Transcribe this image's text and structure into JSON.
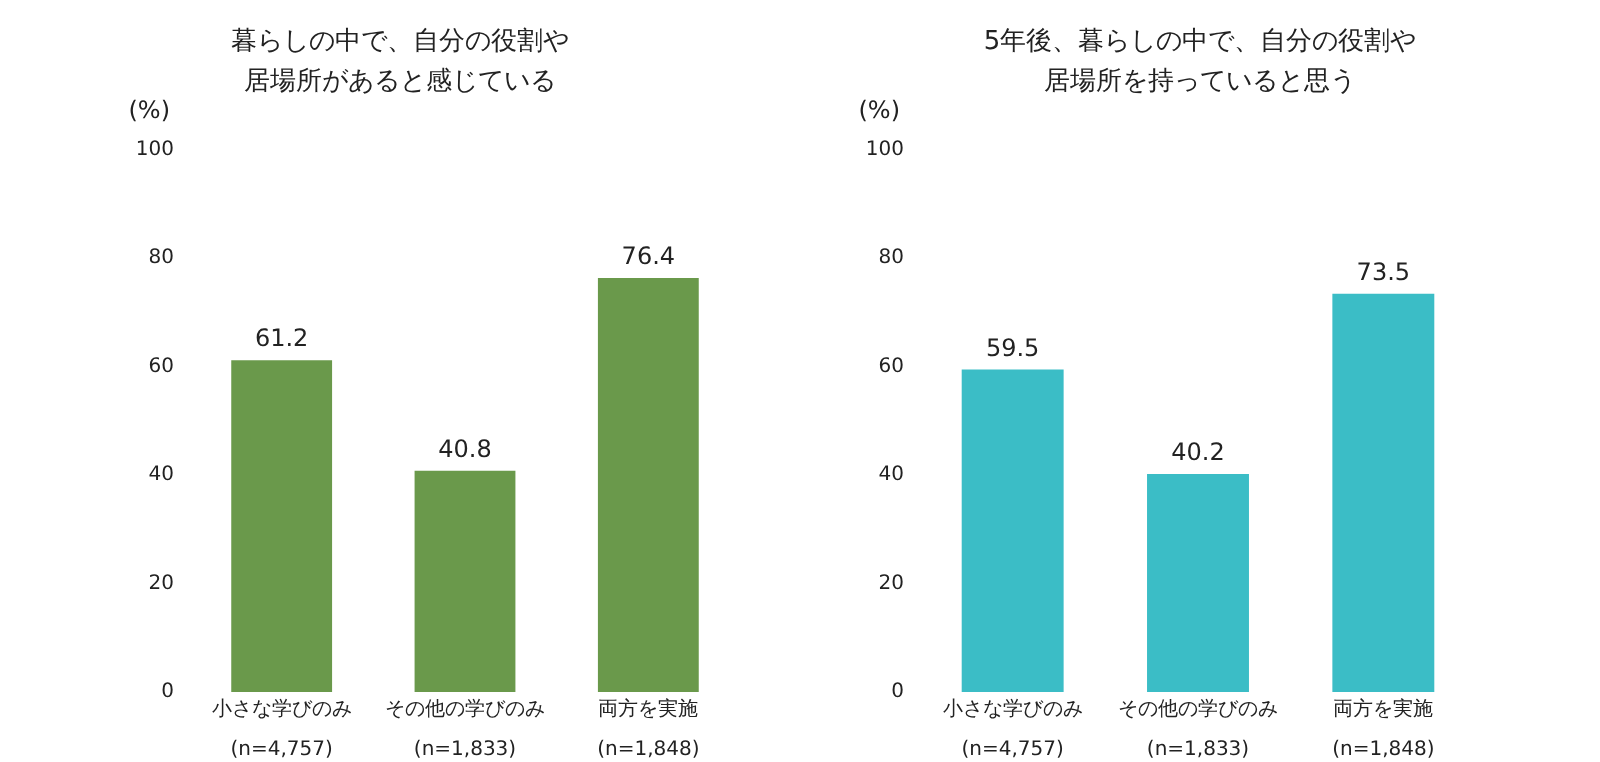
{
  "chart_data": [
    {
      "type": "bar",
      "title": "暮らしの中で、自分の役割や居場所があると感じている",
      "ylabel": "(%)",
      "categories": [
        "小さな学びのみ\n\n(n=4,757)",
        "その他の学びのみ\n\n(n=1,833)",
        "両方を実施\n\n(n=1,848)"
      ],
      "values": [
        61.2,
        40.8,
        76.4
      ],
      "color": "#6a994b",
      "ylim": [
        0,
        100
      ],
      "yticks": [
        0,
        20,
        40,
        60,
        80,
        100
      ],
      "grid": false,
      "data_labels": true
    },
    {
      "type": "bar",
      "title": "5年後、暮らしの中で、自分の役割や居場所を持っていると思う",
      "ylabel": "(%)",
      "categories": [
        "小さな学びのみ\n\n(n=4,757)",
        "その他の学びのみ\n\n(n=1,833)",
        "両方を実施\n\n(n=1,848)"
      ],
      "values": [
        59.5,
        40.2,
        73.5
      ],
      "color": "#3bbdc6",
      "ylim": [
        0,
        100
      ],
      "yticks": [
        0,
        20,
        40,
        60,
        80,
        100
      ],
      "grid": false,
      "data_labels": true
    }
  ]
}
